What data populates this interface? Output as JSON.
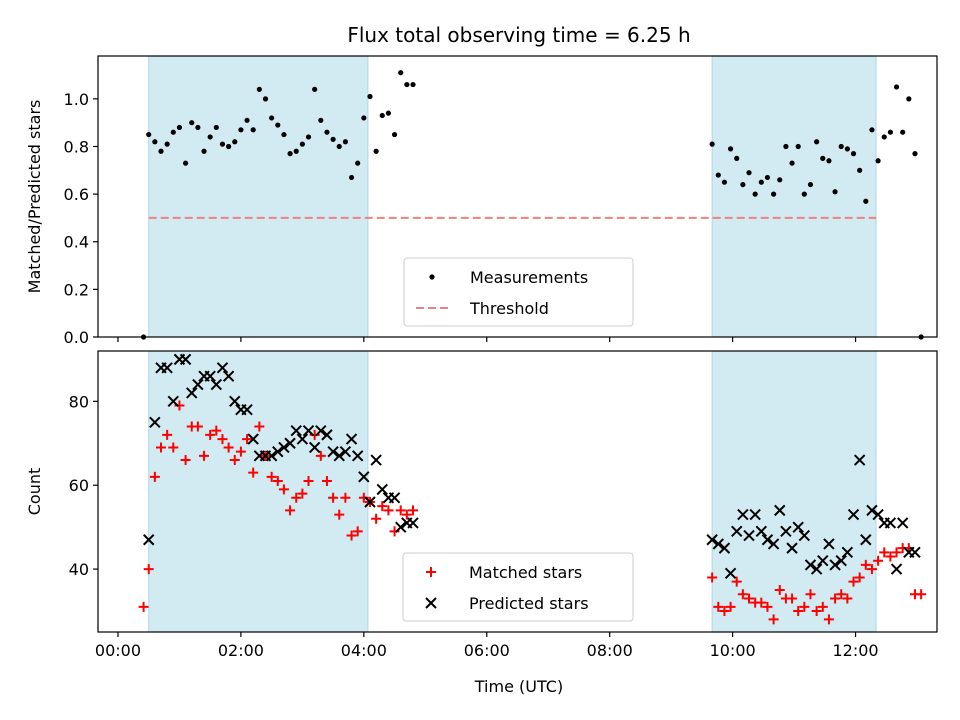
{
  "figure": {
    "title": "Flux total observing time = 6.25 h",
    "xlabel": "Time (UTC)"
  },
  "colors": {
    "shade": "#add8e6",
    "measurement": "#000000",
    "threshold": "#f08080",
    "matched": "#ff0000",
    "predicted": "#000000"
  },
  "chart_data": [
    {
      "type": "scatter",
      "panel": "top",
      "ylabel": "Matched/Predicted stars",
      "xlim": [
        "00:00",
        "13:00"
      ],
      "ylim": [
        0,
        1.18
      ],
      "y_ticks": [
        0.0,
        0.2,
        0.4,
        0.6,
        0.8,
        1.0
      ],
      "x_ticks": [
        "00:00",
        "02:00",
        "04:00",
        "06:00",
        "08:00",
        "10:00",
        "12:00"
      ],
      "grid": false,
      "legend_position": "bottom-center",
      "shaded_intervals": [
        [
          "00:30",
          "04:04"
        ],
        [
          "09:40",
          "12:20"
        ]
      ],
      "threshold": {
        "name": "Threshold",
        "y": 0.5,
        "x_range": [
          "00:30",
          "12:20"
        ]
      },
      "series": [
        {
          "name": "Measurements",
          "marker": "dot",
          "points": [
            [
              "00:25",
              0.0
            ],
            [
              "00:30",
              0.85
            ],
            [
              "00:36",
              0.82
            ],
            [
              "00:42",
              0.78
            ],
            [
              "00:48",
              0.81
            ],
            [
              "00:54",
              0.86
            ],
            [
              "01:00",
              0.88
            ],
            [
              "01:06",
              0.73
            ],
            [
              "01:12",
              0.9
            ],
            [
              "01:18",
              0.88
            ],
            [
              "01:24",
              0.78
            ],
            [
              "01:30",
              0.84
            ],
            [
              "01:36",
              0.88
            ],
            [
              "01:42",
              0.81
            ],
            [
              "01:48",
              0.8
            ],
            [
              "01:54",
              0.82
            ],
            [
              "02:00",
              0.87
            ],
            [
              "02:06",
              0.91
            ],
            [
              "02:12",
              0.87
            ],
            [
              "02:18",
              1.04
            ],
            [
              "02:24",
              1.0
            ],
            [
              "02:30",
              0.92
            ],
            [
              "02:36",
              0.89
            ],
            [
              "02:42",
              0.85
            ],
            [
              "02:48",
              0.77
            ],
            [
              "02:54",
              0.78
            ],
            [
              "03:00",
              0.81
            ],
            [
              "03:06",
              0.84
            ],
            [
              "03:12",
              1.04
            ],
            [
              "03:18",
              0.91
            ],
            [
              "03:24",
              0.86
            ],
            [
              "03:30",
              0.83
            ],
            [
              "03:36",
              0.8
            ],
            [
              "03:42",
              0.82
            ],
            [
              "03:48",
              0.67
            ],
            [
              "03:54",
              0.73
            ],
            [
              "04:00",
              0.92
            ],
            [
              "04:06",
              1.01
            ],
            [
              "04:12",
              0.78
            ],
            [
              "04:18",
              0.93
            ],
            [
              "04:24",
              0.94
            ],
            [
              "04:30",
              0.85
            ],
            [
              "04:36",
              1.11
            ],
            [
              "04:42",
              1.06
            ],
            [
              "04:48",
              1.06
            ],
            [
              "09:40",
              0.81
            ],
            [
              "09:46",
              0.68
            ],
            [
              "09:52",
              0.65
            ],
            [
              "09:58",
              0.79
            ],
            [
              "10:04",
              0.75
            ],
            [
              "10:10",
              0.64
            ],
            [
              "10:16",
              0.69
            ],
            [
              "10:22",
              0.6
            ],
            [
              "10:28",
              0.65
            ],
            [
              "10:34",
              0.67
            ],
            [
              "10:40",
              0.6
            ],
            [
              "10:46",
              0.66
            ],
            [
              "10:52",
              0.8
            ],
            [
              "10:58",
              0.73
            ],
            [
              "11:04",
              0.8
            ],
            [
              "11:10",
              0.6
            ],
            [
              "11:16",
              0.64
            ],
            [
              "11:22",
              0.82
            ],
            [
              "11:28",
              0.75
            ],
            [
              "11:34",
              0.74
            ],
            [
              "11:40",
              0.61
            ],
            [
              "11:46",
              0.8
            ],
            [
              "11:52",
              0.79
            ],
            [
              "11:58",
              0.77
            ],
            [
              "12:04",
              0.7
            ],
            [
              "12:10",
              0.57
            ],
            [
              "12:16",
              0.87
            ],
            [
              "12:22",
              0.74
            ],
            [
              "12:28",
              0.84
            ],
            [
              "12:34",
              0.86
            ],
            [
              "12:40",
              1.05
            ],
            [
              "12:46",
              0.86
            ],
            [
              "12:52",
              1.0
            ],
            [
              "12:58",
              0.77
            ],
            [
              "13:04",
              0.0
            ]
          ]
        }
      ]
    },
    {
      "type": "scatter",
      "panel": "bottom",
      "ylabel": "Count",
      "xlabel": "Time (UTC)",
      "xlim": [
        "00:00",
        "13:00"
      ],
      "ylim": [
        25,
        92
      ],
      "y_ticks": [
        40,
        60,
        80
      ],
      "x_ticks": [
        "00:00",
        "02:00",
        "04:00",
        "06:00",
        "08:00",
        "10:00",
        "12:00"
      ],
      "grid": false,
      "legend_position": "bottom-center",
      "shaded_intervals": [
        [
          "00:30",
          "04:04"
        ],
        [
          "09:40",
          "12:20"
        ]
      ],
      "series": [
        {
          "name": "Matched stars",
          "marker": "plus",
          "points": [
            [
              "00:25",
              31
            ],
            [
              "00:30",
              40
            ],
            [
              "00:36",
              62
            ],
            [
              "00:42",
              69
            ],
            [
              "00:48",
              72
            ],
            [
              "00:54",
              69
            ],
            [
              "01:00",
              79
            ],
            [
              "01:06",
              66
            ],
            [
              "01:12",
              74
            ],
            [
              "01:18",
              74
            ],
            [
              "01:24",
              67
            ],
            [
              "01:30",
              72
            ],
            [
              "01:36",
              73
            ],
            [
              "01:42",
              71
            ],
            [
              "01:48",
              69
            ],
            [
              "01:54",
              66
            ],
            [
              "02:00",
              68
            ],
            [
              "02:06",
              71
            ],
            [
              "02:12",
              63
            ],
            [
              "02:18",
              74
            ],
            [
              "02:24",
              67
            ],
            [
              "02:30",
              62
            ],
            [
              "02:36",
              61
            ],
            [
              "02:42",
              59
            ],
            [
              "02:48",
              54
            ],
            [
              "02:54",
              57
            ],
            [
              "03:00",
              58
            ],
            [
              "03:06",
              61
            ],
            [
              "03:12",
              72
            ],
            [
              "03:18",
              67
            ],
            [
              "03:24",
              61
            ],
            [
              "03:30",
              57
            ],
            [
              "03:36",
              53
            ],
            [
              "03:42",
              57
            ],
            [
              "03:48",
              48
            ],
            [
              "03:54",
              49
            ],
            [
              "04:00",
              57
            ],
            [
              "04:06",
              56
            ],
            [
              "04:12",
              52
            ],
            [
              "04:18",
              55
            ],
            [
              "04:24",
              54
            ],
            [
              "04:30",
              49
            ],
            [
              "04:36",
              54
            ],
            [
              "04:42",
              53
            ],
            [
              "04:48",
              54
            ],
            [
              "09:40",
              38
            ],
            [
              "09:46",
              31
            ],
            [
              "09:52",
              30
            ],
            [
              "09:58",
              31
            ],
            [
              "10:04",
              37
            ],
            [
              "10:10",
              34
            ],
            [
              "10:16",
              33
            ],
            [
              "10:22",
              32
            ],
            [
              "10:28",
              32
            ],
            [
              "10:34",
              31
            ],
            [
              "10:40",
              28
            ],
            [
              "10:46",
              35
            ],
            [
              "10:52",
              33
            ],
            [
              "10:58",
              33
            ],
            [
              "11:04",
              30
            ],
            [
              "11:10",
              31
            ],
            [
              "11:16",
              34
            ],
            [
              "11:22",
              30
            ],
            [
              "11:28",
              31
            ],
            [
              "11:34",
              28
            ],
            [
              "11:40",
              33
            ],
            [
              "11:46",
              34
            ],
            [
              "11:52",
              33
            ],
            [
              "11:58",
              37
            ],
            [
              "12:04",
              38
            ],
            [
              "12:10",
              41
            ],
            [
              "12:16",
              40
            ],
            [
              "12:22",
              42
            ],
            [
              "12:28",
              44
            ],
            [
              "12:34",
              43
            ],
            [
              "12:40",
              44
            ],
            [
              "12:46",
              45
            ],
            [
              "12:52",
              45
            ],
            [
              "12:58",
              34
            ],
            [
              "13:04",
              34
            ]
          ]
        },
        {
          "name": "Predicted stars",
          "marker": "x",
          "points": [
            [
              "00:30",
              47
            ],
            [
              "00:36",
              75
            ],
            [
              "00:42",
              88
            ],
            [
              "00:48",
              88
            ],
            [
              "00:54",
              80
            ],
            [
              "01:00",
              90
            ],
            [
              "01:06",
              90
            ],
            [
              "01:12",
              82
            ],
            [
              "01:18",
              84
            ],
            [
              "01:24",
              86
            ],
            [
              "01:30",
              86
            ],
            [
              "01:36",
              84
            ],
            [
              "01:42",
              88
            ],
            [
              "01:48",
              86
            ],
            [
              "01:54",
              80
            ],
            [
              "02:00",
              78
            ],
            [
              "02:06",
              78
            ],
            [
              "02:12",
              71
            ],
            [
              "02:18",
              67
            ],
            [
              "02:24",
              67
            ],
            [
              "02:30",
              67
            ],
            [
              "02:36",
              68
            ],
            [
              "02:42",
              69
            ],
            [
              "02:48",
              70
            ],
            [
              "02:54",
              73
            ],
            [
              "03:00",
              71
            ],
            [
              "03:06",
              73
            ],
            [
              "03:12",
              69
            ],
            [
              "03:18",
              73
            ],
            [
              "03:24",
              72
            ],
            [
              "03:30",
              68
            ],
            [
              "03:36",
              67
            ],
            [
              "03:42",
              68
            ],
            [
              "03:48",
              71
            ],
            [
              "03:54",
              67
            ],
            [
              "04:00",
              62
            ],
            [
              "04:06",
              56
            ],
            [
              "04:12",
              66
            ],
            [
              "04:18",
              59
            ],
            [
              "04:24",
              57
            ],
            [
              "04:30",
              57
            ],
            [
              "04:36",
              50
            ],
            [
              "04:42",
              51
            ],
            [
              "04:48",
              51
            ],
            [
              "09:40",
              47
            ],
            [
              "09:46",
              46
            ],
            [
              "09:52",
              45
            ],
            [
              "09:58",
              39
            ],
            [
              "10:04",
              49
            ],
            [
              "10:10",
              53
            ],
            [
              "10:16",
              48
            ],
            [
              "10:22",
              53
            ],
            [
              "10:28",
              49
            ],
            [
              "10:34",
              47
            ],
            [
              "10:40",
              46
            ],
            [
              "10:46",
              54
            ],
            [
              "10:52",
              49
            ],
            [
              "10:58",
              45
            ],
            [
              "11:04",
              50
            ],
            [
              "11:10",
              48
            ],
            [
              "11:16",
              41
            ],
            [
              "11:22",
              40
            ],
            [
              "11:28",
              42
            ],
            [
              "11:34",
              46
            ],
            [
              "11:40",
              41
            ],
            [
              "11:46",
              42
            ],
            [
              "11:52",
              44
            ],
            [
              "11:58",
              53
            ],
            [
              "12:04",
              66
            ],
            [
              "12:10",
              47
            ],
            [
              "12:16",
              54
            ],
            [
              "12:22",
              53
            ],
            [
              "12:28",
              51
            ],
            [
              "12:34",
              51
            ],
            [
              "12:40",
              40
            ],
            [
              "12:46",
              51
            ],
            [
              "12:52",
              44
            ],
            [
              "12:58",
              44
            ]
          ]
        }
      ]
    }
  ]
}
